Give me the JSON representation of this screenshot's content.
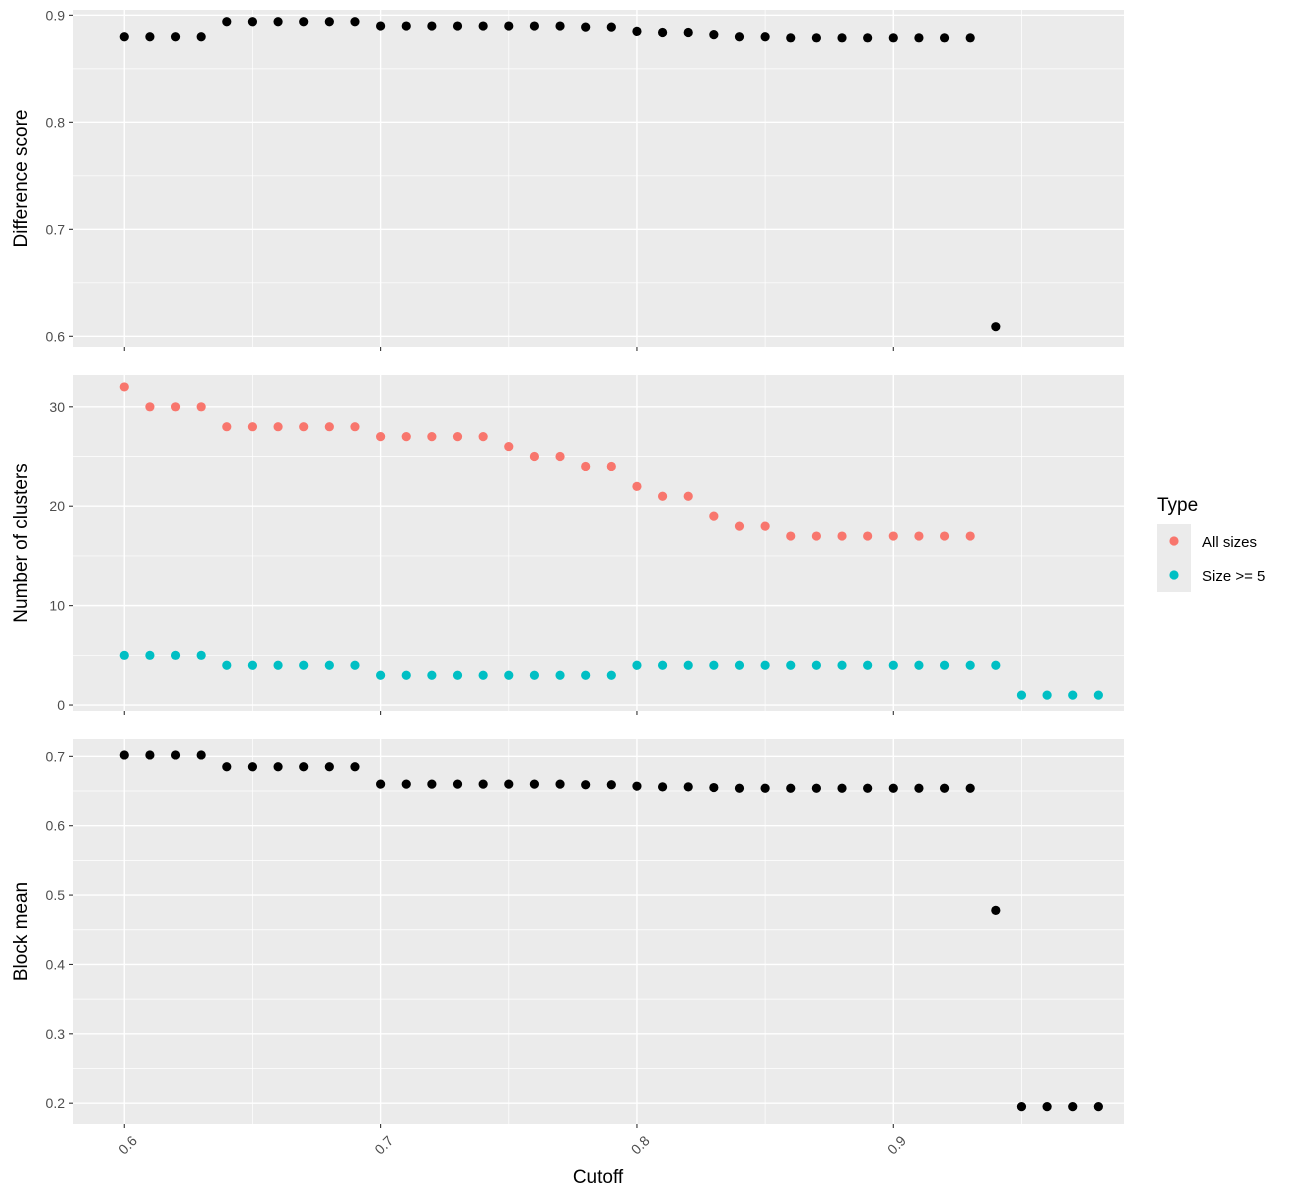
{
  "chart_data": {
    "type": "scatter",
    "shared_x": {
      "label": "Cutoff",
      "xlim": [
        0.58,
        0.99
      ],
      "breaks": [
        0.6,
        0.7,
        0.8,
        0.9
      ],
      "tick_labels": [
        "0.6",
        "0.7",
        "0.8",
        "0.9"
      ],
      "tick_label_rotation": "45 degrees"
    },
    "panels": [
      {
        "ylabel": "Difference score",
        "ylim": [
          0.59,
          0.905
        ],
        "ybreaks": [
          0.6,
          0.7,
          0.8,
          0.9
        ],
        "ytick_labels": [
          "0.6",
          "0.7",
          "0.8",
          "0.9"
        ],
        "series": [
          {
            "color": "#000000",
            "points": [
              [
                0.6,
                0.88
              ],
              [
                0.61,
                0.88
              ],
              [
                0.62,
                0.88
              ],
              [
                0.63,
                0.88
              ],
              [
                0.64,
                0.894
              ],
              [
                0.65,
                0.894
              ],
              [
                0.66,
                0.894
              ],
              [
                0.67,
                0.894
              ],
              [
                0.68,
                0.894
              ],
              [
                0.69,
                0.894
              ],
              [
                0.7,
                0.89
              ],
              [
                0.71,
                0.89
              ],
              [
                0.72,
                0.89
              ],
              [
                0.73,
                0.89
              ],
              [
                0.74,
                0.89
              ],
              [
                0.75,
                0.89
              ],
              [
                0.76,
                0.89
              ],
              [
                0.77,
                0.89
              ],
              [
                0.78,
                0.889
              ],
              [
                0.79,
                0.889
              ],
              [
                0.8,
                0.885
              ],
              [
                0.81,
                0.884
              ],
              [
                0.82,
                0.884
              ],
              [
                0.83,
                0.882
              ],
              [
                0.84,
                0.88
              ],
              [
                0.85,
                0.88
              ],
              [
                0.86,
                0.879
              ],
              [
                0.87,
                0.879
              ],
              [
                0.88,
                0.879
              ],
              [
                0.89,
                0.879
              ],
              [
                0.9,
                0.879
              ],
              [
                0.91,
                0.879
              ],
              [
                0.92,
                0.879
              ],
              [
                0.93,
                0.879
              ],
              [
                0.94,
                0.609
              ]
            ]
          }
        ]
      },
      {
        "ylabel": "Number of clusters",
        "ylim": [
          -0.6,
          33.2
        ],
        "ybreaks": [
          0,
          10,
          20,
          30
        ],
        "ytick_labels": [
          "0",
          "10",
          "20",
          "30"
        ],
        "series": [
          {
            "name": "All sizes",
            "color": "#f8766d",
            "points": [
              [
                0.6,
                32
              ],
              [
                0.61,
                30
              ],
              [
                0.62,
                30
              ],
              [
                0.63,
                30
              ],
              [
                0.64,
                28
              ],
              [
                0.65,
                28
              ],
              [
                0.66,
                28
              ],
              [
                0.67,
                28
              ],
              [
                0.68,
                28
              ],
              [
                0.69,
                28
              ],
              [
                0.7,
                27
              ],
              [
                0.71,
                27
              ],
              [
                0.72,
                27
              ],
              [
                0.73,
                27
              ],
              [
                0.74,
                27
              ],
              [
                0.75,
                26
              ],
              [
                0.76,
                25
              ],
              [
                0.77,
                25
              ],
              [
                0.78,
                24
              ],
              [
                0.79,
                24
              ],
              [
                0.8,
                22
              ],
              [
                0.81,
                21
              ],
              [
                0.82,
                21
              ],
              [
                0.83,
                19
              ],
              [
                0.84,
                18
              ],
              [
                0.85,
                18
              ],
              [
                0.86,
                17
              ],
              [
                0.87,
                17
              ],
              [
                0.88,
                17
              ],
              [
                0.89,
                17
              ],
              [
                0.9,
                17
              ],
              [
                0.91,
                17
              ],
              [
                0.92,
                17
              ],
              [
                0.93,
                17
              ]
            ]
          },
          {
            "name": "Size >= 5",
            "color": "#00bfc4",
            "points": [
              [
                0.6,
                5
              ],
              [
                0.61,
                5
              ],
              [
                0.62,
                5
              ],
              [
                0.63,
                5
              ],
              [
                0.64,
                4
              ],
              [
                0.65,
                4
              ],
              [
                0.66,
                4
              ],
              [
                0.67,
                4
              ],
              [
                0.68,
                4
              ],
              [
                0.69,
                4
              ],
              [
                0.7,
                3
              ],
              [
                0.71,
                3
              ],
              [
                0.72,
                3
              ],
              [
                0.73,
                3
              ],
              [
                0.74,
                3
              ],
              [
                0.75,
                3
              ],
              [
                0.76,
                3
              ],
              [
                0.77,
                3
              ],
              [
                0.78,
                3
              ],
              [
                0.79,
                3
              ],
              [
                0.8,
                4
              ],
              [
                0.81,
                4
              ],
              [
                0.82,
                4
              ],
              [
                0.83,
                4
              ],
              [
                0.84,
                4
              ],
              [
                0.85,
                4
              ],
              [
                0.86,
                4
              ],
              [
                0.87,
                4
              ],
              [
                0.88,
                4
              ],
              [
                0.89,
                4
              ],
              [
                0.9,
                4
              ],
              [
                0.91,
                4
              ],
              [
                0.92,
                4
              ],
              [
                0.93,
                4
              ],
              [
                0.94,
                4
              ],
              [
                0.95,
                1
              ],
              [
                0.96,
                1
              ],
              [
                0.97,
                1
              ],
              [
                0.98,
                1
              ]
            ]
          }
        ]
      },
      {
        "ylabel": "Block mean",
        "ylim": [
          0.17,
          0.725
        ],
        "ybreaks": [
          0.2,
          0.3,
          0.4,
          0.5,
          0.6,
          0.7
        ],
        "ytick_labels": [
          "0.2",
          "0.3",
          "0.4",
          "0.5",
          "0.6",
          "0.7"
        ],
        "series": [
          {
            "color": "#000000",
            "points": [
              [
                0.6,
                0.702
              ],
              [
                0.61,
                0.702
              ],
              [
                0.62,
                0.702
              ],
              [
                0.63,
                0.702
              ],
              [
                0.64,
                0.685
              ],
              [
                0.65,
                0.685
              ],
              [
                0.66,
                0.685
              ],
              [
                0.67,
                0.685
              ],
              [
                0.68,
                0.685
              ],
              [
                0.69,
                0.685
              ],
              [
                0.7,
                0.66
              ],
              [
                0.71,
                0.66
              ],
              [
                0.72,
                0.66
              ],
              [
                0.73,
                0.66
              ],
              [
                0.74,
                0.66
              ],
              [
                0.75,
                0.66
              ],
              [
                0.76,
                0.66
              ],
              [
                0.77,
                0.66
              ],
              [
                0.78,
                0.659
              ],
              [
                0.79,
                0.659
              ],
              [
                0.8,
                0.657
              ],
              [
                0.81,
                0.656
              ],
              [
                0.82,
                0.656
              ],
              [
                0.83,
                0.655
              ],
              [
                0.84,
                0.654
              ],
              [
                0.85,
                0.654
              ],
              [
                0.86,
                0.654
              ],
              [
                0.87,
                0.654
              ],
              [
                0.88,
                0.654
              ],
              [
                0.89,
                0.654
              ],
              [
                0.9,
                0.654
              ],
              [
                0.91,
                0.654
              ],
              [
                0.92,
                0.654
              ],
              [
                0.93,
                0.654
              ],
              [
                0.94,
                0.478
              ],
              [
                0.95,
                0.195
              ],
              [
                0.96,
                0.195
              ],
              [
                0.97,
                0.195
              ],
              [
                0.98,
                0.195
              ]
            ]
          }
        ]
      }
    ],
    "legend": {
      "title": "Type",
      "position": "right",
      "entries": [
        {
          "label": "All sizes",
          "color": "#f8766d"
        },
        {
          "label": "Size >= 5",
          "color": "#00bfc4"
        }
      ]
    },
    "grid": true
  }
}
